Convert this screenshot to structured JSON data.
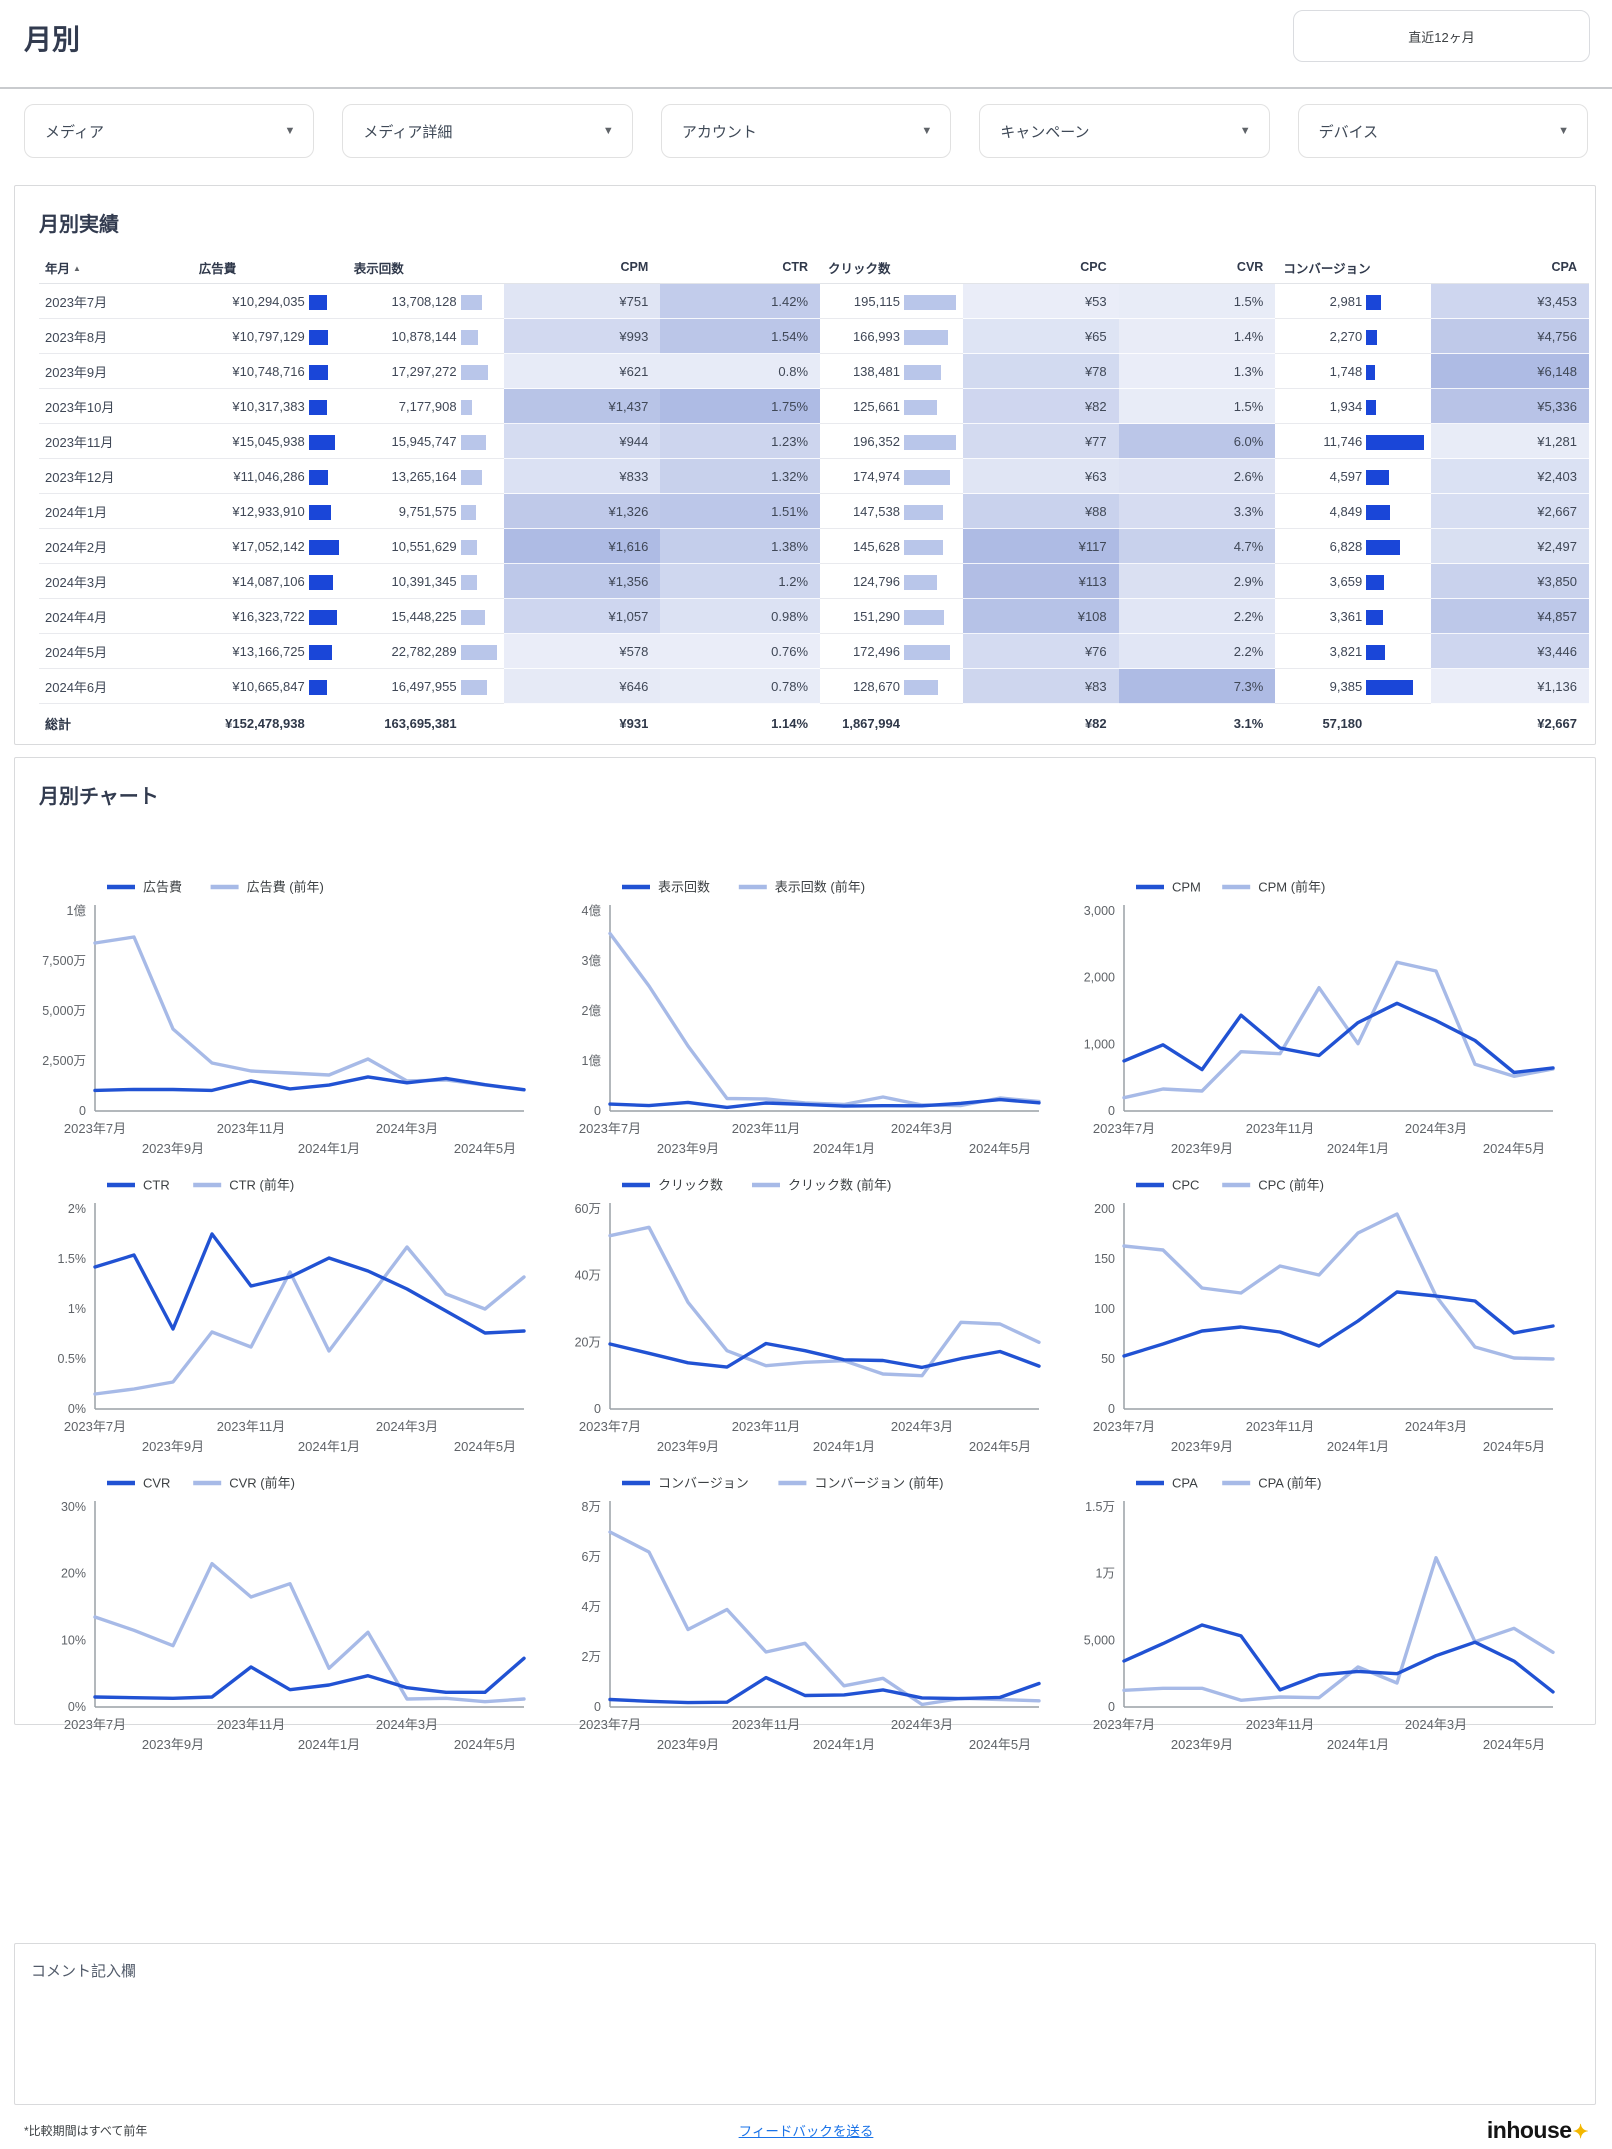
{
  "header": {
    "title": "月別",
    "period_button": "直近12ヶ月"
  },
  "filters": [
    "メディア",
    "メディア詳細",
    "アカウント",
    "キャンペーン",
    "デバイス"
  ],
  "colors": {
    "bar_dark": "#1a46d8",
    "bar_light": "#b9c6ea",
    "line_current": "#2152d3",
    "line_previous": "#a7bae7",
    "heat_low": "#eef1f9",
    "heat_high": "#aebbe4",
    "axis": "#9aa0a6",
    "tick_text": "#5f6368",
    "link": "#1a73e8",
    "logo_spark": "#f3b700"
  },
  "table": {
    "title": "月別実績",
    "columns": [
      "年月",
      "広告費",
      "表示回数",
      "CPM",
      "CTR",
      "クリック数",
      "CPC",
      "CVR",
      "コンバージョン",
      "CPA"
    ],
    "sorted_column": "年月",
    "rows": [
      [
        "2023年7月",
        "¥10,294,035",
        "13,708,128",
        "¥751",
        "1.42%",
        "195,115",
        "¥53",
        "1.5%",
        "2,981",
        "¥3,453"
      ],
      [
        "2023年8月",
        "¥10,797,129",
        "10,878,144",
        "¥993",
        "1.54%",
        "166,993",
        "¥65",
        "1.4%",
        "2,270",
        "¥4,756"
      ],
      [
        "2023年9月",
        "¥10,748,716",
        "17,297,272",
        "¥621",
        "0.8%",
        "138,481",
        "¥78",
        "1.3%",
        "1,748",
        "¥6,148"
      ],
      [
        "2023年10月",
        "¥10,317,383",
        "7,177,908",
        "¥1,437",
        "1.75%",
        "125,661",
        "¥82",
        "1.5%",
        "1,934",
        "¥5,336"
      ],
      [
        "2023年11月",
        "¥15,045,938",
        "15,945,747",
        "¥944",
        "1.23%",
        "196,352",
        "¥77",
        "6.0%",
        "11,746",
        "¥1,281"
      ],
      [
        "2023年12月",
        "¥11,046,286",
        "13,265,164",
        "¥833",
        "1.32%",
        "174,974",
        "¥63",
        "2.6%",
        "4,597",
        "¥2,403"
      ],
      [
        "2024年1月",
        "¥12,933,910",
        "9,751,575",
        "¥1,326",
        "1.51%",
        "147,538",
        "¥88",
        "3.3%",
        "4,849",
        "¥2,667"
      ],
      [
        "2024年2月",
        "¥17,052,142",
        "10,551,629",
        "¥1,616",
        "1.38%",
        "145,628",
        "¥117",
        "4.7%",
        "6,828",
        "¥2,497"
      ],
      [
        "2024年3月",
        "¥14,087,106",
        "10,391,345",
        "¥1,356",
        "1.2%",
        "124,796",
        "¥113",
        "2.9%",
        "3,659",
        "¥3,850"
      ],
      [
        "2024年4月",
        "¥16,323,722",
        "15,448,225",
        "¥1,057",
        "0.98%",
        "151,290",
        "¥108",
        "2.2%",
        "3,361",
        "¥4,857"
      ],
      [
        "2024年5月",
        "¥13,166,725",
        "22,782,289",
        "¥578",
        "0.76%",
        "172,496",
        "¥76",
        "2.2%",
        "3,821",
        "¥3,446"
      ],
      [
        "2024年6月",
        "¥10,665,847",
        "16,497,955",
        "¥646",
        "0.78%",
        "128,670",
        "¥83",
        "7.3%",
        "9,385",
        "¥1,136"
      ]
    ],
    "total": [
      "総計",
      "¥152,478,938",
      "163,695,381",
      "¥931",
      "1.14%",
      "1,867,994",
      "¥82",
      "3.1%",
      "57,180",
      "¥2,667"
    ]
  },
  "charts_section": {
    "title": "月別チャート"
  },
  "chart_data": [
    {
      "type": "line",
      "title": "広告費",
      "categories": [
        "2023年7月",
        "2023年8月",
        "2023年9月",
        "2023年10月",
        "2023年11月",
        "2023年12月",
        "2024年1月",
        "2024年2月",
        "2024年3月",
        "2024年4月",
        "2024年5月",
        "2024年6月"
      ],
      "ylim": [
        0,
        100000000
      ],
      "yticks": [
        {
          "v": 0,
          "l": "0"
        },
        {
          "v": 25000000,
          "l": "2,500万"
        },
        {
          "v": 50000000,
          "l": "5,000万"
        },
        {
          "v": 75000000,
          "l": "7,500万"
        },
        {
          "v": 100000000,
          "l": "1億"
        }
      ],
      "series": [
        {
          "name": "広告費",
          "values": [
            10294035,
            10797129,
            10748716,
            10317383,
            15045938,
            11046286,
            12933910,
            17052142,
            14087106,
            16323722,
            13166725,
            10665847
          ]
        },
        {
          "name": "広告費 (前年)",
          "values": [
            84000000,
            87000000,
            41000000,
            24000000,
            20000000,
            19000000,
            18000000,
            26000000,
            15000000,
            15500000,
            13000000,
            10500000
          ]
        }
      ]
    },
    {
      "type": "line",
      "title": "表示回数",
      "categories": [
        "2023年7月",
        "2023年8月",
        "2023年9月",
        "2023年10月",
        "2023年11月",
        "2023年12月",
        "2024年1月",
        "2024年2月",
        "2024年3月",
        "2024年4月",
        "2024年5月",
        "2024年6月"
      ],
      "ylim": [
        0,
        400000000
      ],
      "yticks": [
        {
          "v": 0,
          "l": "0"
        },
        {
          "v": 100000000,
          "l": "1億"
        },
        {
          "v": 200000000,
          "l": "2億"
        },
        {
          "v": 300000000,
          "l": "3億"
        },
        {
          "v": 400000000,
          "l": "4億"
        }
      ],
      "series": [
        {
          "name": "表示回数",
          "values": [
            13708128,
            10878144,
            17297272,
            7177908,
            15945747,
            13265164,
            9751575,
            10551629,
            10391345,
            15448225,
            22782289,
            16497955
          ]
        },
        {
          "name": "表示回数 (前年)",
          "values": [
            355000000,
            250000000,
            130000000,
            25000000,
            24000000,
            16000000,
            13000000,
            28000000,
            12000000,
            11000000,
            26000000,
            19000000
          ]
        }
      ]
    },
    {
      "type": "line",
      "title": "CPM",
      "categories": [
        "2023年7月",
        "2023年8月",
        "2023年9月",
        "2023年10月",
        "2023年11月",
        "2023年12月",
        "2024年1月",
        "2024年2月",
        "2024年3月",
        "2024年4月",
        "2024年5月",
        "2024年6月"
      ],
      "ylim": [
        0,
        3000
      ],
      "yticks": [
        {
          "v": 0,
          "l": "0"
        },
        {
          "v": 1000,
          "l": "1,000"
        },
        {
          "v": 2000,
          "l": "2,000"
        },
        {
          "v": 3000,
          "l": "3,000"
        }
      ],
      "series": [
        {
          "name": "CPM",
          "values": [
            751,
            993,
            621,
            1437,
            944,
            833,
            1326,
            1616,
            1356,
            1057,
            578,
            646
          ]
        },
        {
          "name": "CPM (前年)",
          "values": [
            200,
            330,
            300,
            890,
            860,
            1850,
            1010,
            2230,
            2100,
            700,
            520,
            630
          ]
        }
      ]
    },
    {
      "type": "line",
      "title": "CTR",
      "categories": [
        "2023年7月",
        "2023年8月",
        "2023年9月",
        "2023年10月",
        "2023年11月",
        "2023年12月",
        "2024年1月",
        "2024年2月",
        "2024年3月",
        "2024年4月",
        "2024年5月",
        "2024年6月"
      ],
      "ylim": [
        0,
        2
      ],
      "yticks": [
        {
          "v": 0,
          "l": "0%"
        },
        {
          "v": 0.5,
          "l": "0.5%"
        },
        {
          "v": 1,
          "l": "1%"
        },
        {
          "v": 1.5,
          "l": "1.5%"
        },
        {
          "v": 2,
          "l": "2%"
        }
      ],
      "series": [
        {
          "name": "CTR",
          "values": [
            1.42,
            1.54,
            0.8,
            1.75,
            1.23,
            1.32,
            1.51,
            1.38,
            1.2,
            0.98,
            0.76,
            0.78
          ]
        },
        {
          "name": "CTR (前年)",
          "values": [
            0.15,
            0.2,
            0.27,
            0.77,
            0.62,
            1.37,
            0.58,
            1.1,
            1.62,
            1.15,
            1.0,
            1.32
          ]
        }
      ]
    },
    {
      "type": "line",
      "title": "クリック数",
      "categories": [
        "2023年7月",
        "2023年8月",
        "2023年9月",
        "2023年10月",
        "2023年11月",
        "2023年12月",
        "2024年1月",
        "2024年2月",
        "2024年3月",
        "2024年4月",
        "2024年5月",
        "2024年6月"
      ],
      "ylim": [
        0,
        600000
      ],
      "yticks": [
        {
          "v": 0,
          "l": "0"
        },
        {
          "v": 200000,
          "l": "20万"
        },
        {
          "v": 400000,
          "l": "40万"
        },
        {
          "v": 600000,
          "l": "60万"
        }
      ],
      "series": [
        {
          "name": "クリック数",
          "values": [
            195115,
            166993,
            138481,
            125661,
            196352,
            174974,
            147538,
            145628,
            124796,
            151290,
            172496,
            128670
          ]
        },
        {
          "name": "クリック数 (前年)",
          "values": [
            520000,
            545000,
            320000,
            175000,
            130000,
            140000,
            145000,
            105000,
            100000,
            260000,
            255000,
            200000
          ]
        }
      ]
    },
    {
      "type": "line",
      "title": "CPC",
      "categories": [
        "2023年7月",
        "2023年8月",
        "2023年9月",
        "2023年10月",
        "2023年11月",
        "2023年12月",
        "2024年1月",
        "2024年2月",
        "2024年3月",
        "2024年4月",
        "2024年5月",
        "2024年6月"
      ],
      "ylim": [
        0,
        200
      ],
      "yticks": [
        {
          "v": 0,
          "l": "0"
        },
        {
          "v": 50,
          "l": "50"
        },
        {
          "v": 100,
          "l": "100"
        },
        {
          "v": 150,
          "l": "150"
        },
        {
          "v": 200,
          "l": "200"
        }
      ],
      "series": [
        {
          "name": "CPC",
          "values": [
            53,
            65,
            78,
            82,
            77,
            63,
            88,
            117,
            113,
            108,
            76,
            83
          ]
        },
        {
          "name": "CPC (前年)",
          "values": [
            163,
            159,
            121,
            116,
            143,
            134,
            176,
            195,
            113,
            62,
            51,
            50
          ]
        }
      ]
    },
    {
      "type": "line",
      "title": "CVR",
      "categories": [
        "2023年7月",
        "2023年8月",
        "2023年9月",
        "2023年10月",
        "2023年11月",
        "2023年12月",
        "2024年1月",
        "2024年2月",
        "2024年3月",
        "2024年4月",
        "2024年5月",
        "2024年6月"
      ],
      "ylim": [
        0,
        30
      ],
      "yticks": [
        {
          "v": 0,
          "l": "0%"
        },
        {
          "v": 10,
          "l": "10%"
        },
        {
          "v": 20,
          "l": "20%"
        },
        {
          "v": 30,
          "l": "30%"
        }
      ],
      "series": [
        {
          "name": "CVR",
          "values": [
            1.5,
            1.4,
            1.3,
            1.5,
            6.0,
            2.6,
            3.3,
            4.7,
            2.9,
            2.2,
            2.2,
            7.3
          ]
        },
        {
          "name": "CVR (前年)",
          "values": [
            13.5,
            11.5,
            9.2,
            21.5,
            16.5,
            18.5,
            5.8,
            11.2,
            1.2,
            1.3,
            0.8,
            1.2
          ]
        }
      ]
    },
    {
      "type": "line",
      "title": "コンバージョン",
      "categories": [
        "2023年7月",
        "2023年8月",
        "2023年9月",
        "2023年10月",
        "2023年11月",
        "2023年12月",
        "2024年1月",
        "2024年2月",
        "2024年3月",
        "2024年4月",
        "2024年5月",
        "2024年6月"
      ],
      "ylim": [
        0,
        80000
      ],
      "yticks": [
        {
          "v": 0,
          "l": "0"
        },
        {
          "v": 20000,
          "l": "2万"
        },
        {
          "v": 40000,
          "l": "4万"
        },
        {
          "v": 60000,
          "l": "6万"
        },
        {
          "v": 80000,
          "l": "8万"
        }
      ],
      "series": [
        {
          "name": "コンバージョン",
          "values": [
            2981,
            2270,
            1748,
            1934,
            11746,
            4597,
            4849,
            6828,
            3659,
            3361,
            3821,
            9385
          ]
        },
        {
          "name": "コンバージョン (前年)",
          "values": [
            70000,
            62000,
            31000,
            39000,
            22000,
            25500,
            8500,
            11500,
            1000,
            3500,
            3000,
            2500
          ]
        }
      ]
    },
    {
      "type": "line",
      "title": "CPA",
      "categories": [
        "2023年7月",
        "2023年8月",
        "2023年9月",
        "2023年10月",
        "2023年11月",
        "2023年12月",
        "2024年1月",
        "2024年2月",
        "2024年3月",
        "2024年4月",
        "2024年5月",
        "2024年6月"
      ],
      "ylim": [
        0,
        15000
      ],
      "yticks": [
        {
          "v": 0,
          "l": "0"
        },
        {
          "v": 5000,
          "l": "5,000"
        },
        {
          "v": 10000,
          "l": "1万"
        },
        {
          "v": 15000,
          "l": "1.5万"
        }
      ],
      "series": [
        {
          "name": "CPA",
          "values": [
            3453,
            4756,
            6148,
            5336,
            1281,
            2403,
            2667,
            2497,
            3850,
            4857,
            3446,
            1136
          ]
        },
        {
          "name": "CPA (前年)",
          "values": [
            1250,
            1400,
            1400,
            500,
            750,
            700,
            3000,
            1800,
            11200,
            4900,
            5900,
            4100
          ]
        }
      ]
    }
  ],
  "comment": {
    "label": "コメント記入欄"
  },
  "footer": {
    "note": "*比較期間はすべて前年",
    "feedback_label": "フィードバックを送る",
    "logo_text": "inhouse"
  }
}
